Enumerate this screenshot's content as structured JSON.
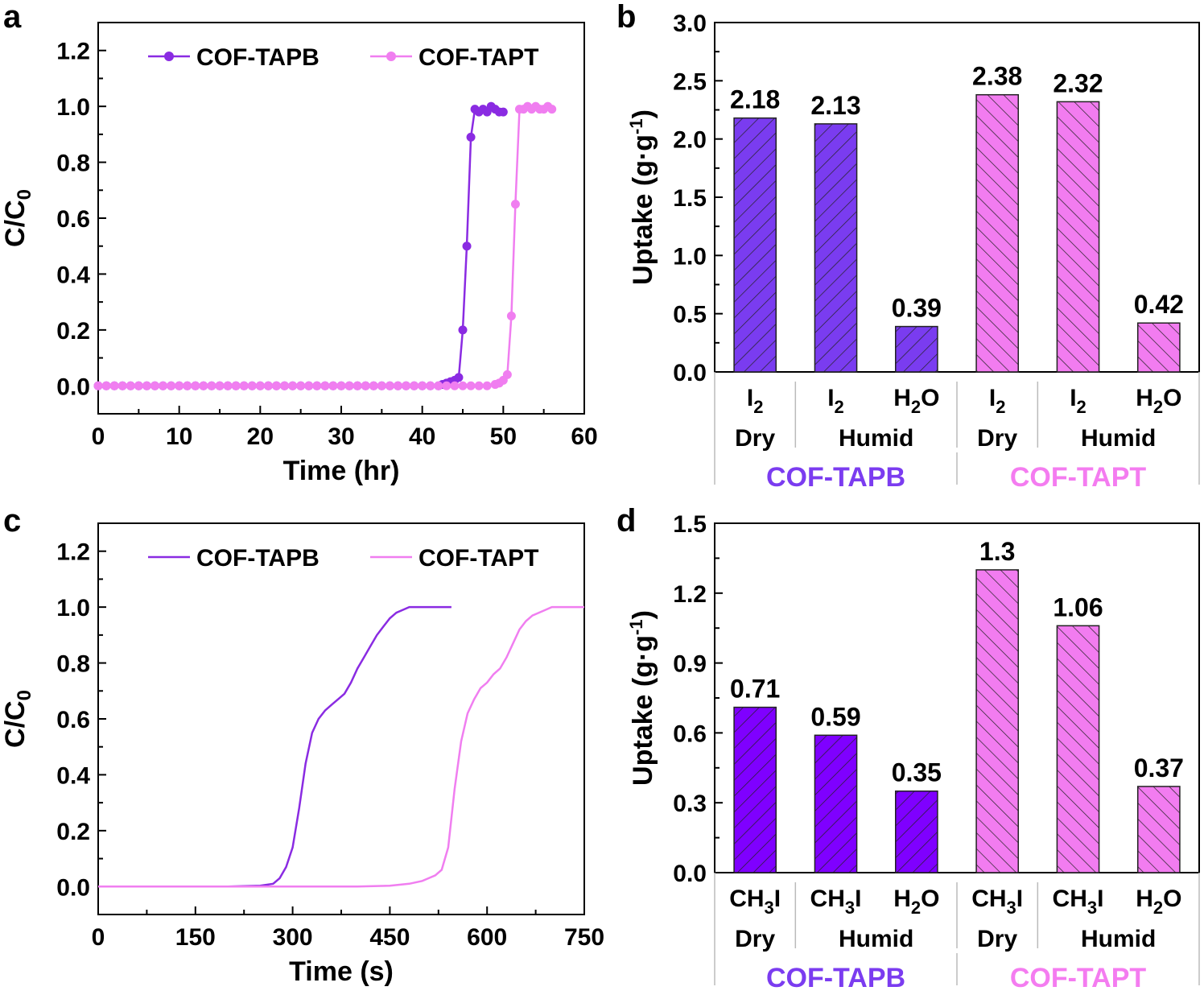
{
  "colors": {
    "tapb": "#8a2be2",
    "tapb_bar": "#7a3cf0",
    "tapb_bar_d": "#7f00ff",
    "tapt": "#f07ef0",
    "tapt_bar": "#f27cf0",
    "group_tapb": "#7b3cf0",
    "group_tapt": "#f47cf0"
  },
  "chart_data": [
    {
      "panel": "a",
      "type": "line",
      "xlabel": "Time (hr)",
      "ylabel": "C/C",
      "ylabel_sub": "0",
      "xlim": [
        0,
        60
      ],
      "ylim": [
        -0.1,
        1.3
      ],
      "xticks": [
        0,
        10,
        20,
        30,
        40,
        50,
        60
      ],
      "yticks": [
        0.0,
        0.2,
        0.4,
        0.6,
        0.8,
        1.0,
        1.2
      ],
      "markers": true,
      "legend": "top",
      "series": [
        {
          "name": "COF-TAPB",
          "color": "#8a2be2",
          "x": [
            0,
            1,
            2,
            3,
            4,
            5,
            6,
            7,
            8,
            9,
            10,
            11,
            12,
            13,
            14,
            15,
            16,
            17,
            18,
            19,
            20,
            21,
            22,
            23,
            24,
            25,
            26,
            27,
            28,
            29,
            30,
            31,
            32,
            33,
            34,
            35,
            36,
            37,
            38,
            39,
            40,
            41,
            42,
            42.5,
            43,
            43.5,
            44,
            44.5,
            45,
            45.5,
            46,
            46.5,
            47,
            47.5,
            48,
            48.5,
            49,
            49.5,
            50
          ],
          "y": [
            0,
            0,
            0,
            0,
            0,
            0,
            0,
            0,
            0,
            0,
            0,
            0,
            0,
            0,
            0,
            0,
            0,
            0,
            0,
            0,
            0,
            0,
            0,
            0,
            0,
            0,
            0,
            0,
            0,
            0,
            0,
            0,
            0,
            0,
            0,
            0,
            0,
            0,
            0,
            0,
            0,
            0,
            0,
            0.005,
            0.01,
            0.015,
            0.02,
            0.03,
            0.2,
            0.5,
            0.89,
            0.99,
            0.98,
            0.99,
            0.98,
            1.0,
            0.99,
            0.98,
            0.98
          ]
        },
        {
          "name": "COF-TAPT",
          "color": "#f07ef0",
          "x": [
            0,
            1,
            2,
            3,
            4,
            5,
            6,
            7,
            8,
            9,
            10,
            11,
            12,
            13,
            14,
            15,
            16,
            17,
            18,
            19,
            20,
            21,
            22,
            23,
            24,
            25,
            26,
            27,
            28,
            29,
            30,
            31,
            32,
            33,
            34,
            35,
            36,
            37,
            38,
            39,
            40,
            41,
            42,
            43,
            44,
            45,
            46,
            47,
            48,
            49,
            49.5,
            50,
            50.5,
            51,
            51.5,
            52,
            52.5,
            53,
            53.5,
            54,
            54.5,
            55,
            55.5,
            56
          ],
          "y": [
            0,
            0,
            0,
            0,
            0,
            0,
            0,
            0,
            0,
            0,
            0,
            0,
            0,
            0,
            0,
            0,
            0,
            0,
            0,
            0,
            0,
            0,
            0,
            0,
            0,
            0,
            0,
            0,
            0,
            0,
            0,
            0,
            0,
            0,
            0,
            0,
            0,
            0,
            0,
            0,
            0,
            0,
            0,
            0,
            0,
            0,
            0,
            0,
            0,
            0.005,
            0.01,
            0.02,
            0.04,
            0.25,
            0.65,
            0.99,
            0.99,
            1.0,
            0.99,
            1.0,
            0.99,
            0.99,
            1.0,
            0.99
          ]
        }
      ]
    },
    {
      "panel": "b",
      "type": "bar",
      "ylabel": "Uptake (g·g",
      "ylabel_sup": "-1",
      "ylabel_close": ")",
      "ylim": [
        0,
        3.0
      ],
      "yticks": [
        0.0,
        0.5,
        1.0,
        1.5,
        2.0,
        2.5,
        3.0
      ],
      "values": [
        2.18,
        2.13,
        0.39,
        2.38,
        2.32,
        0.42
      ],
      "value_labels": [
        "2.18",
        "2.13",
        "0.39",
        "2.38",
        "2.32",
        "0.42"
      ],
      "categories": [
        {
          "main": "I",
          "sub": "2",
          "rest": ""
        },
        {
          "main": "I",
          "sub": "2",
          "rest": ""
        },
        {
          "main": "H",
          "sub": "2",
          "rest": "O"
        },
        {
          "main": "I",
          "sub": "2",
          "rest": ""
        },
        {
          "main": "I",
          "sub": "2",
          "rest": ""
        },
        {
          "main": "H",
          "sub": "2",
          "rest": "O"
        }
      ],
      "conditions": [
        {
          "label": "Dry",
          "from": 0,
          "to": 0
        },
        {
          "label": "Humid",
          "from": 1,
          "to": 2
        },
        {
          "label": "Dry",
          "from": 3,
          "to": 3
        },
        {
          "label": "Humid",
          "from": 4,
          "to": 5
        }
      ],
      "groups": [
        {
          "label": "COF-TAPB",
          "color": "#7b3cf0"
        },
        {
          "label": "COF-TAPT",
          "color": "#f47cf0"
        }
      ],
      "bar_colors": [
        "#7a3cf0",
        "#7a3cf0",
        "#7a3cf0",
        "#f27cf0",
        "#f27cf0",
        "#f27cf0"
      ],
      "hatch": [
        "diag-up",
        "diag-up",
        "diag-up",
        "diag-down",
        "diag-down",
        "diag-down"
      ]
    },
    {
      "panel": "c",
      "type": "line",
      "xlabel": "Time (s)",
      "ylabel": "C/C",
      "ylabel_sub": "0",
      "xlim": [
        0,
        750
      ],
      "ylim": [
        -0.1,
        1.3
      ],
      "xticks": [
        0,
        150,
        300,
        450,
        600,
        750
      ],
      "yticks": [
        0.0,
        0.2,
        0.4,
        0.6,
        0.8,
        1.0,
        1.2
      ],
      "markers": false,
      "legend": "top",
      "series": [
        {
          "name": "COF-TAPB",
          "color": "#8a2be2",
          "x": [
            0,
            100,
            200,
            250,
            270,
            280,
            290,
            300,
            310,
            320,
            330,
            340,
            350,
            360,
            370,
            380,
            390,
            400,
            410,
            420,
            430,
            440,
            450,
            460,
            470,
            480,
            490,
            500,
            510,
            520,
            530,
            540,
            545
          ],
          "y": [
            0,
            0,
            0,
            0.003,
            0.01,
            0.03,
            0.07,
            0.14,
            0.28,
            0.44,
            0.55,
            0.6,
            0.63,
            0.65,
            0.67,
            0.69,
            0.73,
            0.78,
            0.82,
            0.86,
            0.9,
            0.93,
            0.96,
            0.98,
            0.99,
            1.0,
            1.0,
            1.0,
            1.0,
            1.0,
            1.0,
            1.0,
            1.0
          ]
        },
        {
          "name": "COF-TAPT",
          "color": "#f07ef0",
          "x": [
            0,
            100,
            200,
            300,
            400,
            450,
            480,
            500,
            510,
            520,
            530,
            540,
            550,
            560,
            570,
            580,
            590,
            600,
            610,
            620,
            630,
            640,
            650,
            660,
            670,
            680,
            690,
            700,
            710,
            720,
            730,
            740,
            750
          ],
          "y": [
            0,
            0,
            0,
            0,
            0,
            0.003,
            0.01,
            0.02,
            0.03,
            0.04,
            0.06,
            0.14,
            0.35,
            0.52,
            0.62,
            0.67,
            0.71,
            0.73,
            0.76,
            0.78,
            0.82,
            0.87,
            0.92,
            0.95,
            0.97,
            0.98,
            0.99,
            1.0,
            1.0,
            1.0,
            1.0,
            1.0,
            1.0
          ]
        }
      ]
    },
    {
      "panel": "d",
      "type": "bar",
      "ylabel": "Uptake (g·g",
      "ylabel_sup": "-1",
      "ylabel_close": ")",
      "ylim": [
        0,
        1.5
      ],
      "yticks": [
        0.0,
        0.3,
        0.6,
        0.9,
        1.2,
        1.5
      ],
      "values": [
        0.71,
        0.59,
        0.35,
        1.3,
        1.06,
        0.37
      ],
      "value_labels": [
        "0.71",
        "0.59",
        "0.35",
        "1.3",
        "1.06",
        "0.37"
      ],
      "categories": [
        {
          "main": "CH",
          "sub": "3",
          "rest": "I"
        },
        {
          "main": "CH",
          "sub": "3",
          "rest": "I"
        },
        {
          "main": "H",
          "sub": "2",
          "rest": "O"
        },
        {
          "main": "CH",
          "sub": "3",
          "rest": "I"
        },
        {
          "main": "CH",
          "sub": "3",
          "rest": "I"
        },
        {
          "main": "H",
          "sub": "2",
          "rest": "O"
        }
      ],
      "conditions": [
        {
          "label": "Dry",
          "from": 0,
          "to": 0
        },
        {
          "label": "Humid",
          "from": 1,
          "to": 2
        },
        {
          "label": "Dry",
          "from": 3,
          "to": 3
        },
        {
          "label": "Humid",
          "from": 4,
          "to": 5
        }
      ],
      "groups": [
        {
          "label": "COF-TAPB",
          "color": "#7b3cf0"
        },
        {
          "label": "COF-TAPT",
          "color": "#f47cf0"
        }
      ],
      "bar_colors": [
        "#7f00ff",
        "#7f00ff",
        "#7f00ff",
        "#f27cf0",
        "#f27cf0",
        "#f27cf0"
      ],
      "hatch": [
        "diag-up",
        "diag-up",
        "diag-up",
        "diag-down",
        "diag-down",
        "diag-down"
      ]
    }
  ],
  "panel_letters": [
    "a",
    "b",
    "c",
    "d"
  ]
}
